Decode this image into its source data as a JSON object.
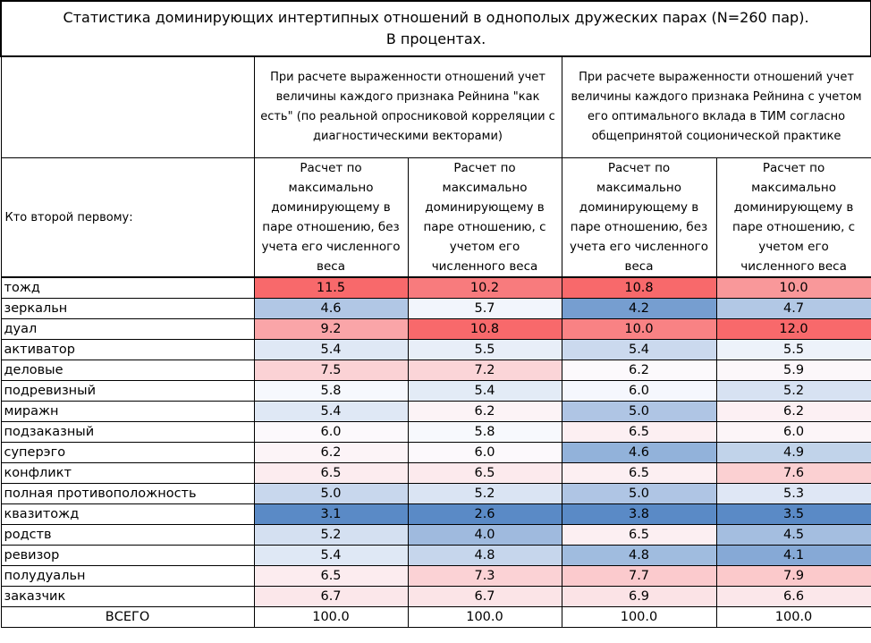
{
  "title": {
    "line1": "Статистика доминирующих интертипных отношений в однополых дружеских парах (N=260 пар).",
    "line2": "В процентах."
  },
  "groups": [
    "При расчете выраженности отношений учет величины каждого признака Рейнина \"как есть\" (по реальной опросниковой корреляции с диагностическими векторами)",
    "При расчете выраженности отношений учет величины каждого признака Рейнина с учетом его оптимального вклада в ТИМ согласно общепринятой соционической практике"
  ],
  "row_header": "Кто второй первому:",
  "subheaders": [
    "Расчет по максимально доминирующему в паре отношению, без учета его численного веса",
    "Расчет по максимально доминирующему в паре отношению, с учетом его численного веса",
    "Расчет по максимально доминирующему в паре отношению, без учета его численного веса",
    "Расчет по максимально доминирующему в паре отношению, с учетом его численного веса"
  ],
  "rows": [
    {
      "label": "тожд",
      "values": [
        "11.5",
        "10.2",
        "10.8",
        "10.0"
      ]
    },
    {
      "label": "зеркальн",
      "values": [
        "4.6",
        "5.7",
        "4.2",
        "4.7"
      ]
    },
    {
      "label": "дуал",
      "values": [
        "9.2",
        "10.8",
        "10.0",
        "12.0"
      ]
    },
    {
      "label": "активатор",
      "values": [
        "5.4",
        "5.5",
        "5.4",
        "5.5"
      ]
    },
    {
      "label": "деловые",
      "values": [
        "7.5",
        "7.2",
        "6.2",
        "5.9"
      ]
    },
    {
      "label": "подревизный",
      "values": [
        "5.8",
        "5.4",
        "6.0",
        "5.2"
      ]
    },
    {
      "label": "миражн",
      "values": [
        "5.4",
        "6.2",
        "5.0",
        "6.2"
      ]
    },
    {
      "label": "подзаказный",
      "values": [
        "6.0",
        "5.8",
        "6.5",
        "6.0"
      ]
    },
    {
      "label": "суперэго",
      "values": [
        "6.2",
        "6.0",
        "4.6",
        "4.9"
      ]
    },
    {
      "label": "конфликт",
      "values": [
        "6.5",
        "6.5",
        "6.5",
        "7.6"
      ]
    },
    {
      "label": "полная противоположность",
      "values": [
        "5.0",
        "5.2",
        "5.0",
        "5.3"
      ]
    },
    {
      "label": "квазитожд",
      "values": [
        "3.1",
        "2.6",
        "3.8",
        "3.5"
      ]
    },
    {
      "label": "родств",
      "values": [
        "5.2",
        "4.0",
        "6.5",
        "4.5"
      ]
    },
    {
      "label": "ревизор",
      "values": [
        "5.4",
        "4.8",
        "4.8",
        "4.1"
      ]
    },
    {
      "label": "полудуальн",
      "values": [
        "6.5",
        "7.3",
        "7.7",
        "7.9"
      ]
    },
    {
      "label": "заказчик",
      "values": [
        "6.7",
        "6.7",
        "6.9",
        "6.6"
      ]
    }
  ],
  "total": {
    "label": "ВСЕГО",
    "values": [
      "100.0",
      "100.0",
      "100.0",
      "100.0"
    ]
  },
  "colors": {
    "high": "#f8696b",
    "mid": "#fcfcff",
    "low": "#5a8ac6"
  }
}
